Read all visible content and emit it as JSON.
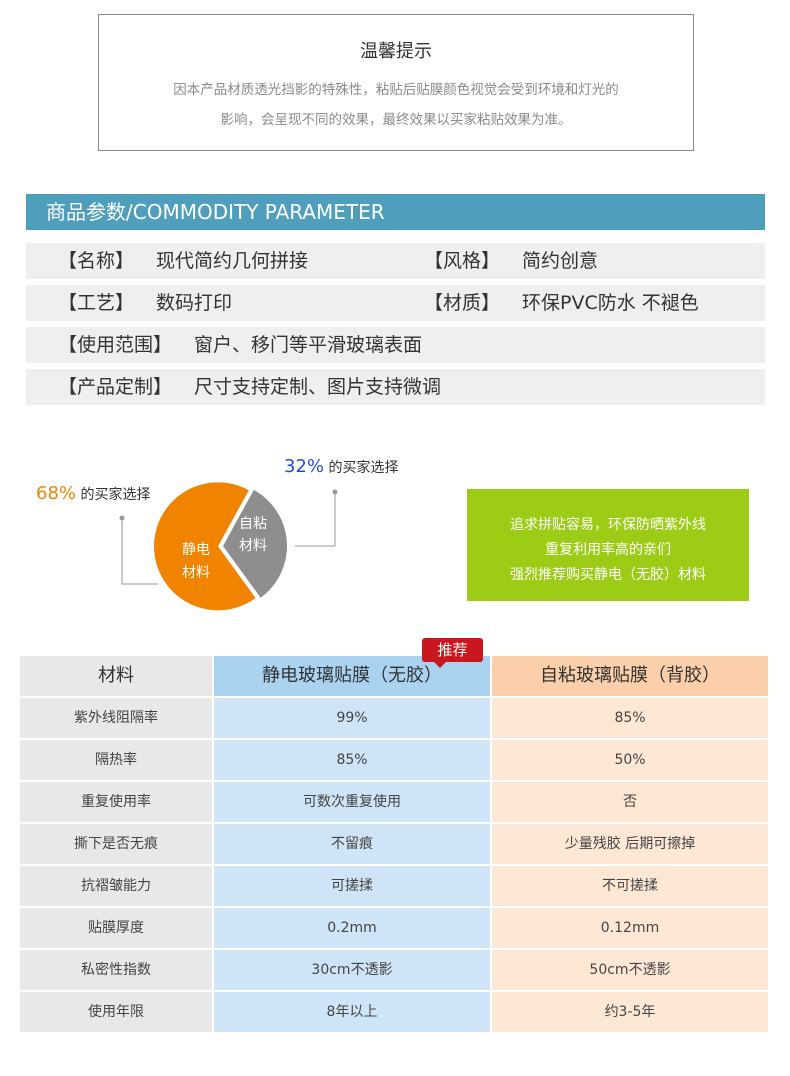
{
  "notice": {
    "title": "温馨提示",
    "line1": "因本产品材质透光挡影的特殊性，粘贴后贴膜颜色视觉会受到环境和灯光的",
    "line2": "影响，会呈现不同的效果，最终效果以买家粘贴效果为准。"
  },
  "params": {
    "header": "商品参数/COMMODITY PARAMETER",
    "rows": [
      {
        "k1": "【名称】",
        "v1": "现代简约几何拼接",
        "k2": "【风格】",
        "v2": "简约创意"
      },
      {
        "k1": "【工艺】",
        "v1": "数码打印",
        "k2": "【材质】",
        "v2": "环保PVC防水 不褪色"
      },
      {
        "k1": "【使用范围】",
        "v1": "窗户、移门等平滑玻璃表面"
      },
      {
        "k1": "【产品定制】",
        "v1": "尺寸支持定制、图片支持微调"
      }
    ]
  },
  "chart_data": {
    "type": "pie",
    "slices": [
      {
        "label": "静电\n材料",
        "label_line1": "静电",
        "label_line2": "材料",
        "value": 68,
        "color": "#f08300"
      },
      {
        "label": "自粘\n材料",
        "label_line1": "自粘",
        "label_line2": "材料",
        "value": 32,
        "color": "#8e8e8e"
      }
    ],
    "callouts": [
      {
        "pct": "68%",
        "text": "的买家选择",
        "color": "#f08300"
      },
      {
        "pct": "32%",
        "text": "的买家选择",
        "color": "#1f4fc4"
      }
    ]
  },
  "promo": {
    "line1": "追求拼贴容易，环保防晒紫外线",
    "line2": "重复利用率高的亲们",
    "line3": "强烈推荐购买静电（无胶）材料",
    "color": "#9dcc16"
  },
  "comparison": {
    "badge": "推荐",
    "headers": [
      "材料",
      "静电玻璃贴膜（无胶）",
      "自粘玻璃贴膜（背胶）"
    ],
    "rows": [
      [
        "紫外线阻隔率",
        "99%",
        "85%"
      ],
      [
        "隔热率",
        "85%",
        "50%"
      ],
      [
        "重复使用率",
        "可数次重复使用",
        "否"
      ],
      [
        "撕下是否无痕",
        "不留痕",
        "少量残胶 后期可擦掉"
      ],
      [
        "抗褶皱能力",
        "可搓揉",
        "不可搓揉"
      ],
      [
        "贴膜厚度",
        "0.2mm",
        "0.12mm"
      ],
      [
        "私密性指数",
        "30cm不透影",
        "50cm不透影"
      ],
      [
        "使用年限",
        "8年以上",
        "约3-5年"
      ]
    ]
  }
}
